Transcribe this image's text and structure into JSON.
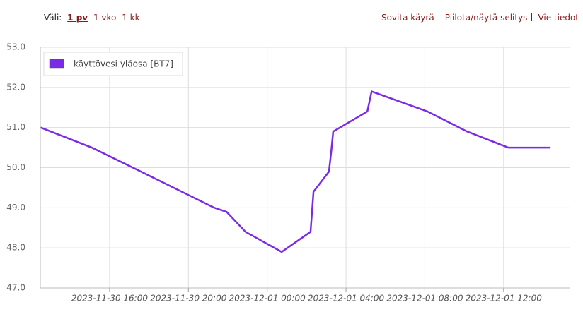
{
  "nav": {
    "label": "Väli:",
    "ranges": [
      "1 pv",
      "1 vko",
      "1 kk"
    ],
    "actions": [
      "Sovita käyrä",
      "Piilota/näytä selitys",
      "Vie tiedot"
    ]
  },
  "chart_data": {
    "type": "line",
    "x": [
      "2023-11-30 12:30",
      "2023-11-30 15:06",
      "2023-11-30 17:11",
      "2023-11-30 21:19",
      "2023-11-30 21:56",
      "2023-11-30 22:54",
      "2023-12-01 00:44",
      "2023-12-01 02:12",
      "2023-12-01 02:21",
      "2023-12-01 03:08",
      "2023-12-01 03:15",
      "2023-12-01 03:21",
      "2023-12-01 05:05",
      "2023-12-01 05:18",
      "2023-12-01 08:08",
      "2023-12-01 10:09",
      "2023-12-01 12:14",
      "2023-12-01 14:23"
    ],
    "series": [
      {
        "name": "käyttövesi yläosa [BT7]",
        "color": "#7b2ae6",
        "values": [
          51.0,
          50.5,
          50.0,
          49.0,
          48.9,
          48.4,
          47.9,
          48.4,
          49.4,
          49.9,
          50.4,
          50.9,
          51.4,
          51.9,
          51.4,
          50.9,
          50.5,
          50.5
        ]
      }
    ],
    "xlim": [
      "2023-11-30 12:29",
      "2023-12-01 15:23"
    ],
    "xticks": [
      "2023-11-30 16:00",
      "2023-11-30 20:00",
      "2023-12-01 00:00",
      "2023-12-01 04:00",
      "2023-12-01 08:00",
      "2023-12-01 12:00"
    ],
    "ylim": [
      47,
      53
    ],
    "yticks": [
      {
        "value": 47,
        "label": "47.0"
      },
      {
        "value": 48,
        "label": "48.0"
      },
      {
        "value": 49,
        "label": "49.0"
      },
      {
        "value": 50,
        "label": "50.0"
      },
      {
        "value": 51,
        "label": "51.0"
      },
      {
        "value": 52,
        "label": "52.0"
      },
      {
        "value": 53,
        "label": "53.0"
      }
    ],
    "grid": true,
    "legend": "top-left"
  }
}
